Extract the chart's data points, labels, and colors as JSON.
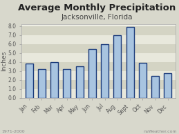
{
  "title": "Average Monthly Precipitation",
  "subtitle": "Jacksonville, Florida",
  "months": [
    "Jan",
    "Feb",
    "Mar",
    "Apr",
    "May",
    "Jun",
    "Jul",
    "Aug",
    "Sept",
    "Oct",
    "Nov",
    "Dec"
  ],
  "values": [
    3.8,
    3.2,
    4.0,
    3.2,
    3.5,
    5.4,
    6.0,
    7.0,
    7.9,
    3.9,
    2.4,
    2.7
  ],
  "bar_color": "#a8c4e0",
  "bar_edge_color": "#1a3a7a",
  "bar_edge_width": 1.0,
  "ylabel": "Inches",
  "ylim": [
    0,
    8.2
  ],
  "yticks": [
    0.0,
    1.0,
    2.0,
    3.0,
    4.0,
    5.0,
    6.0,
    7.0,
    8.0
  ],
  "band_colors": [
    "#e8e8dc",
    "#d4d4c4"
  ],
  "background_color": "#d8d8cc",
  "plot_bg_color": "#eeeee4",
  "footer_left": "1971-2000",
  "footer_right": "nsWeather.com",
  "title_fontsize": 9.5,
  "subtitle_fontsize": 7.5,
  "tick_fontsize": 5.5,
  "ylabel_fontsize": 6.5,
  "footer_fontsize": 4.5
}
